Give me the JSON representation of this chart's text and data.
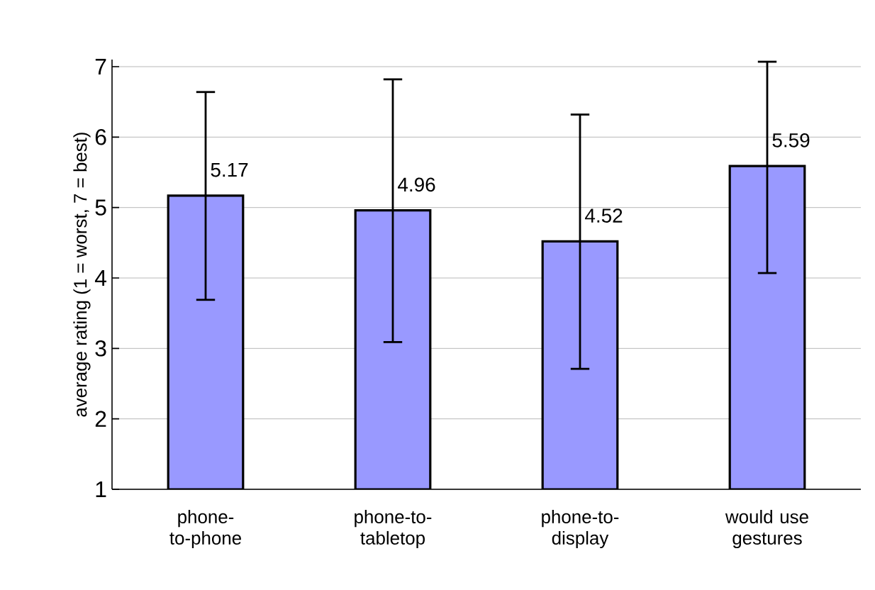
{
  "chart_data": {
    "type": "bar",
    "ylabel": "average rating (1 = worst, 7 = best)",
    "categories": [
      "phone-to-phone",
      "phone-to-tabletop",
      "phone-to-display",
      "would use gestures"
    ],
    "values": [
      5.17,
      4.96,
      4.52,
      5.59
    ],
    "errors": [
      [
        3.69,
        6.64
      ],
      [
        3.09,
        6.82
      ],
      [
        2.71,
        6.32
      ],
      [
        4.07,
        7.07
      ]
    ],
    "color": "#9999ff",
    "ylim": [
      1,
      7.1
    ],
    "yticks": [
      1,
      2,
      3,
      4,
      5,
      6,
      7
    ],
    "grid": "y",
    "data_labels": true
  }
}
